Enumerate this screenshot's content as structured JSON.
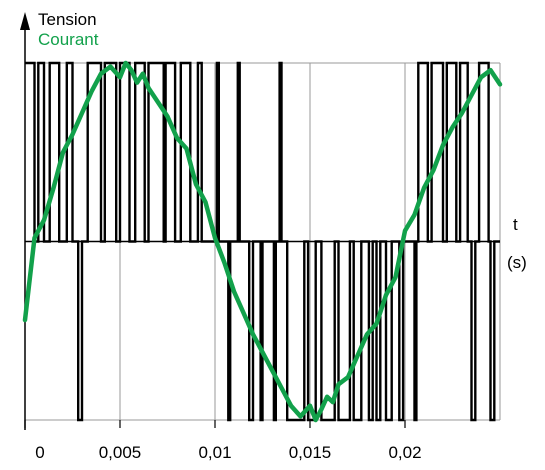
{
  "chart_data": {
    "type": "line",
    "ylabel_1": "Tension",
    "ylabel_2": "Courant",
    "xlabel_1": "t",
    "xlabel_2": "(s)",
    "x_ticks": [
      "0",
      "0,005",
      "0,01",
      "0,015",
      "0,02"
    ],
    "x_tick_values": [
      0,
      0.005,
      0.01,
      0.015,
      0.02
    ],
    "xlim": [
      0,
      0.025
    ],
    "ylim": [
      -1,
      1
    ],
    "grid": true,
    "series": [
      {
        "name": "Tension",
        "color": "#000000",
        "style": "pwm",
        "transitions": [
          [
            0,
            1
          ],
          [
            0.0005,
            0
          ],
          [
            0.0007,
            1
          ],
          [
            0.001,
            0
          ],
          [
            0.0013,
            1
          ],
          [
            0.0018,
            0
          ],
          [
            0.0022,
            1
          ],
          [
            0.0025,
            0
          ],
          [
            0.0028,
            -1
          ],
          [
            0.003,
            0
          ],
          [
            0.0033,
            1
          ],
          [
            0.004,
            0
          ],
          [
            0.0042,
            1
          ],
          [
            0.0048,
            0
          ],
          [
            0.005,
            1
          ],
          [
            0.0055,
            0
          ],
          [
            0.0058,
            1
          ],
          [
            0.0063,
            0
          ],
          [
            0.0065,
            1
          ],
          [
            0.0073,
            0
          ],
          [
            0.0074,
            1
          ],
          [
            0.0079,
            0
          ],
          [
            0.0082,
            1
          ],
          [
            0.0087,
            0
          ],
          [
            0.0091,
            1
          ],
          [
            0.0093,
            0
          ],
          [
            0.0101,
            1
          ],
          [
            0.0102,
            0
          ],
          [
            0.0107,
            -1
          ],
          [
            0.0108,
            0
          ],
          [
            0.0112,
            1
          ],
          [
            0.0113,
            0
          ],
          [
            0.0118,
            -1
          ],
          [
            0.012,
            0
          ],
          [
            0.0124,
            -1
          ],
          [
            0.0125,
            0
          ],
          [
            0.0131,
            -1
          ],
          [
            0.0132,
            0
          ],
          [
            0.0134,
            1
          ],
          [
            0.0135,
            0
          ],
          [
            0.0138,
            -1
          ],
          [
            0.0147,
            0
          ],
          [
            0.0149,
            -1
          ],
          [
            0.0153,
            0
          ],
          [
            0.0156,
            -1
          ],
          [
            0.0163,
            0
          ],
          [
            0.0165,
            -1
          ],
          [
            0.0171,
            0
          ],
          [
            0.0173,
            -1
          ],
          [
            0.0177,
            0
          ],
          [
            0.0181,
            -1
          ],
          [
            0.0183,
            0
          ],
          [
            0.0185,
            -1
          ],
          [
            0.0187,
            0
          ],
          [
            0.019,
            -1
          ],
          [
            0.0193,
            0
          ],
          [
            0.0197,
            -1
          ],
          [
            0.0199,
            0
          ],
          [
            0.0205,
            -1
          ],
          [
            0.0206,
            0
          ],
          [
            0.0207,
            1
          ],
          [
            0.0212,
            0
          ],
          [
            0.0214,
            1
          ],
          [
            0.022,
            0
          ],
          [
            0.0222,
            1
          ],
          [
            0.0227,
            0
          ],
          [
            0.0229,
            1
          ],
          [
            0.0233,
            0
          ],
          [
            0.0235,
            -1
          ],
          [
            0.0237,
            0
          ],
          [
            0.0239,
            1
          ],
          [
            0.0244,
            0
          ],
          [
            0.0245,
            -1
          ],
          [
            0.0247,
            0
          ],
          [
            0.025,
            0
          ]
        ]
      },
      {
        "name": "Courant",
        "color": "#12a14b",
        "x": [
          0,
          0.0005,
          0.001,
          0.0015,
          0.002,
          0.0025,
          0.003,
          0.0035,
          0.004,
          0.0045,
          0.005,
          0.0053,
          0.0056,
          0.0059,
          0.0062,
          0.0065,
          0.007,
          0.0075,
          0.008,
          0.0085,
          0.009,
          0.0095,
          0.01,
          0.0105,
          0.011,
          0.0115,
          0.012,
          0.0125,
          0.013,
          0.0135,
          0.014,
          0.0145,
          0.015,
          0.0153,
          0.0156,
          0.0159,
          0.0162,
          0.0165,
          0.017,
          0.0175,
          0.018,
          0.0185,
          0.019,
          0.0195,
          0.02,
          0.0205,
          0.021,
          0.0215,
          0.022,
          0.0225,
          0.023,
          0.0235,
          0.024,
          0.0245,
          0.025
        ],
        "y": [
          -0.44,
          0.02,
          0.12,
          0.3,
          0.5,
          0.6,
          0.72,
          0.84,
          0.94,
          0.98,
          0.92,
          1.0,
          0.96,
          0.89,
          0.94,
          0.86,
          0.78,
          0.7,
          0.58,
          0.52,
          0.32,
          0.22,
          0.02,
          -0.12,
          -0.28,
          -0.4,
          -0.52,
          -0.62,
          -0.72,
          -0.82,
          -0.92,
          -0.98,
          -0.92,
          -1.0,
          -0.94,
          -0.87,
          -0.9,
          -0.8,
          -0.76,
          -0.64,
          -0.52,
          -0.46,
          -0.3,
          -0.2,
          0.06,
          0.15,
          0.3,
          0.4,
          0.54,
          0.64,
          0.72,
          0.82,
          0.92,
          0.96,
          0.88
        ]
      }
    ]
  }
}
